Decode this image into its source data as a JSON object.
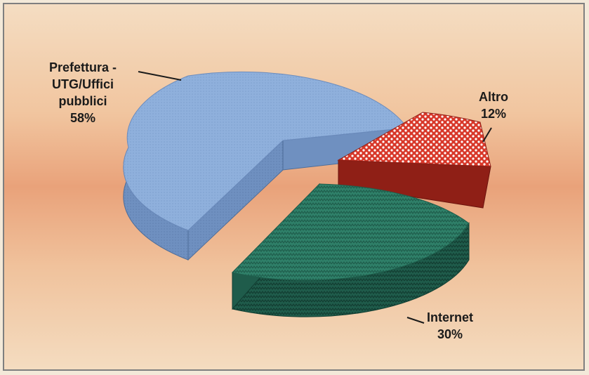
{
  "chart_data": {
    "type": "pie",
    "title": "",
    "slices": [
      {
        "label_lines": [
          "Prefettura -",
          "UTG/Uffici",
          "pubblici"
        ],
        "percent_label": "58%",
        "value": 58,
        "color": "#8fb0dc"
      },
      {
        "label_lines": [
          "Altro"
        ],
        "percent_label": "12%",
        "value": 12,
        "color": "#d8382a"
      },
      {
        "label_lines": [
          "Internet"
        ],
        "percent_label": "30%",
        "value": 30,
        "color": "#2e7a66"
      }
    ],
    "legend": "none",
    "style": "3d-exploded"
  }
}
